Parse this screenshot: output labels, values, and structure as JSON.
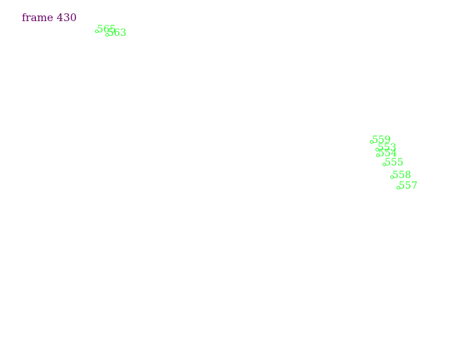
{
  "frame": {
    "label": "frame 430"
  },
  "markers": [
    {
      "id": "565"
    },
    {
      "id": "563"
    },
    {
      "id": "559"
    },
    {
      "id": "553"
    },
    {
      "id": "554"
    },
    {
      "id": "555"
    },
    {
      "id": "558"
    },
    {
      "id": "557"
    }
  ],
  "colors": {
    "frame_label": "#660066",
    "marker": "#33ff33",
    "background": "#ffffff"
  }
}
